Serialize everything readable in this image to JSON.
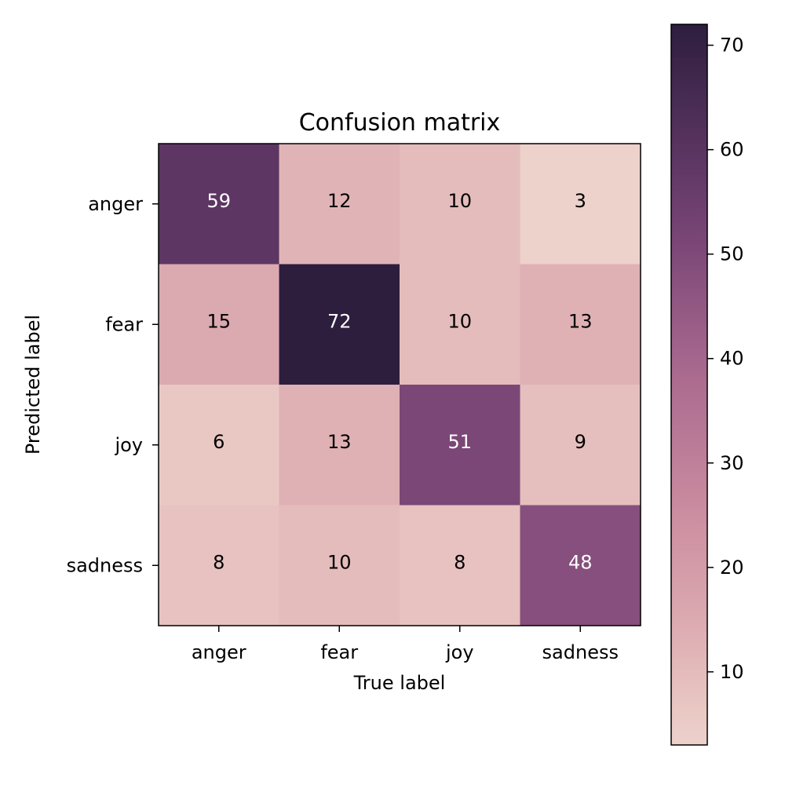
{
  "chart_data": {
    "type": "heatmap",
    "title": "Confusion matrix",
    "xlabel": "True label",
    "ylabel": "Predicted label",
    "x_categories": [
      "anger",
      "fear",
      "joy",
      "sadness"
    ],
    "y_categories": [
      "anger",
      "fear",
      "joy",
      "sadness"
    ],
    "values": [
      [
        59,
        12,
        10,
        3
      ],
      [
        15,
        72,
        10,
        13
      ],
      [
        6,
        13,
        51,
        9
      ],
      [
        8,
        10,
        8,
        48
      ]
    ],
    "colorbar": {
      "min": 3,
      "max": 72,
      "ticks": [
        10,
        20,
        30,
        40,
        50,
        60,
        70
      ],
      "tick_labels": [
        "10",
        "20",
        "30",
        "40",
        "50",
        "60",
        "70"
      ]
    },
    "colormap_stops": [
      {
        "value": 3,
        "color": "#edd1cb"
      },
      {
        "value": 10,
        "color": "#e4bcbb"
      },
      {
        "value": 15,
        "color": "#dba9b0"
      },
      {
        "value": 25,
        "color": "#cc8da0"
      },
      {
        "value": 40,
        "color": "#a5668d"
      },
      {
        "value": 51,
        "color": "#7b4777"
      },
      {
        "value": 59,
        "color": "#5d3663"
      },
      {
        "value": 72,
        "color": "#2d1e3e"
      }
    ],
    "text_colors": {
      "light": "#ffffff",
      "dark": "#000000"
    },
    "text_threshold": 37.5
  }
}
